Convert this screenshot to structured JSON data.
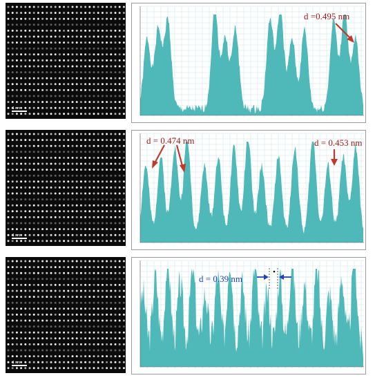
{
  "panels": [
    {
      "scale_label": "1 nm",
      "annotations": [
        {
          "text": "d =0.495 nm",
          "color": "#a11a1a"
        }
      ],
      "arrow_color": "#c0392b"
    },
    {
      "scale_label": "1 nm",
      "annotations": [
        {
          "text": "d = 0.474 nm",
          "color": "#a11a1a"
        },
        {
          "text": "d = 0.453 nm",
          "color": "#a11a1a"
        }
      ],
      "arrow_color": "#c0392b"
    },
    {
      "scale_label": "1 nm",
      "annotations": [
        {
          "text": "d = 0.39 nm",
          "color": "#1f3fbf"
        }
      ],
      "arrow_color": "#1f3fbf"
    }
  ],
  "colors": {
    "profile_fill": "#4fb8b8",
    "grid": "#c9e3e3",
    "image_bg": "#0b0b0b"
  }
}
